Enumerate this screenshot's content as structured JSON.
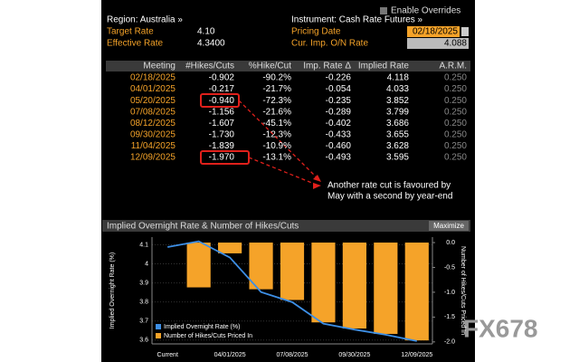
{
  "header": {
    "enable_overrides": "Enable Overrides",
    "region": "Region: Australia »",
    "instrument": "Instrument: Cash Rate Futures »",
    "fields": [
      {
        "label": "Target Rate",
        "value": "4.10"
      },
      {
        "label": "Effective Rate",
        "value": "4.3400"
      },
      {
        "label": "Pricing Date",
        "value": "02/18/2025"
      },
      {
        "label": "Cur. Imp. O/N Rate",
        "value": "4.088"
      }
    ]
  },
  "table": {
    "columns": [
      "Meeting",
      "#Hikes/Cuts",
      "%Hike/Cut",
      "Imp. Rate Δ",
      "Implied Rate",
      "A.R.M."
    ],
    "rows": [
      [
        "02/18/2025",
        "-0.902",
        "-90.2%",
        "-0.226",
        "4.118",
        "0.250"
      ],
      [
        "04/01/2025",
        "-0.217",
        "-21.7%",
        "-0.054",
        "4.033",
        "0.250"
      ],
      [
        "05/20/2025",
        "-0.940",
        "-72.3%",
        "-0.235",
        "3.852",
        "0.250"
      ],
      [
        "07/08/2025",
        "-1.156",
        "-21.6%",
        "-0.289",
        "3.799",
        "0.250"
      ],
      [
        "08/12/2025",
        "-1.607",
        "-45.1%",
        "-0.402",
        "3.686",
        "0.250"
      ],
      [
        "09/30/2025",
        "-1.730",
        "-12.3%",
        "-0.433",
        "3.655",
        "0.250"
      ],
      [
        "11/04/2025",
        "-1.839",
        "-10.9%",
        "-0.460",
        "3.628",
        "0.250"
      ],
      [
        "12/09/2025",
        "-1.970",
        "-13.1%",
        "-0.493",
        "3.595",
        "0.250"
      ]
    ]
  },
  "annotation": [
    "Another rate cut is favoured by",
    "May with a second by year-end"
  ],
  "chart": {
    "type": "bar_line",
    "title": "Implied Overnight Rate & Number of Hikes/Cuts",
    "button": "Maximize",
    "ylabel": "Implied Overnight Rate (%)",
    "y2label": "Number of Hikes/Cuts Priced In",
    "categories": [
      "Current",
      null,
      "04/01/2025",
      null,
      "07/08/2025",
      null,
      "09/30/2025",
      null,
      "12/09/2025"
    ],
    "ylim": [
      3.58,
      4.14
    ],
    "yticks": [
      3.6,
      3.7,
      3.8,
      3.9,
      4.0,
      4.1
    ],
    "y2lim": [
      -2.04,
      0.11
    ],
    "y2ticks": [
      {
        "value": 0,
        "label": "0.0"
      },
      -0.5,
      {
        "value": -1,
        "label": "-1.0"
      },
      -1.5,
      {
        "value": -2,
        "label": "-2.0"
      }
    ],
    "grid": true,
    "series": [
      {
        "name": "Implied Overnight Rate (%)",
        "type": "line",
        "color": "#3d8fe6",
        "values": [
          4.088,
          4.118,
          4.033,
          3.852,
          3.799,
          3.686,
          3.655,
          3.628,
          3.595
        ]
      },
      {
        "name": "Number of Hikes/Cuts Priced In",
        "type": "bar",
        "axis": "y2",
        "color": "#f5a329",
        "values": [
          null,
          -0.902,
          -0.217,
          -0.94,
          -1.156,
          -1.607,
          -1.73,
          -1.839,
          -1.97
        ]
      }
    ]
  },
  "watermark": "FX678"
}
